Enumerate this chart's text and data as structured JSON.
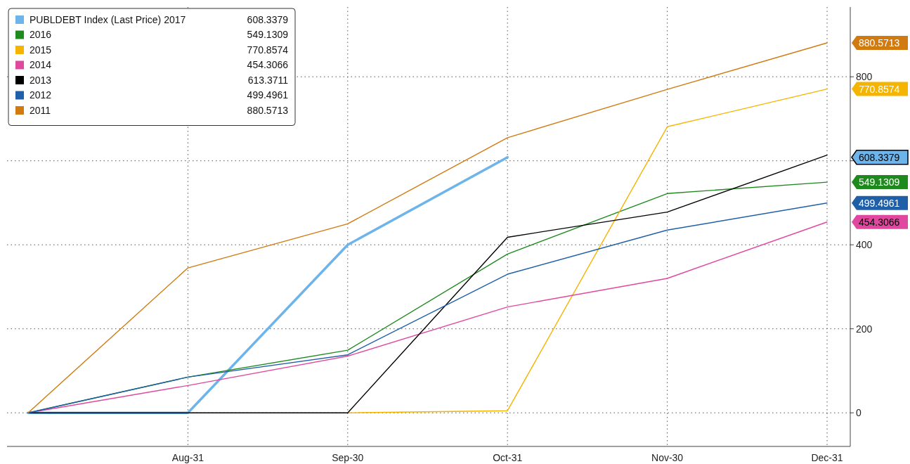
{
  "chart_data": {
    "type": "line",
    "categories": [
      null,
      "Aug-31",
      "Sep-30",
      "Oct-31",
      "Nov-30",
      "Dec-31"
    ],
    "ylim": [
      -80,
      966
    ],
    "yticks": [
      0,
      200,
      400,
      {
        "value": 600,
        "label": null
      },
      800
    ],
    "grid": true,
    "legend": "top left",
    "series": [
      {
        "name": "PUBLDEBT Index (Last Price) 2017",
        "color": "#6cb4ea",
        "values": [
          0,
          0,
          400,
          608.3379,
          null,
          null
        ]
      },
      {
        "name": "2016",
        "color": "#1e8a1e",
        "values": [
          0,
          85,
          149,
          378,
          522,
          549.1309
        ]
      },
      {
        "name": "2015",
        "color": "#f5b400",
        "values": [
          null,
          null,
          0,
          5,
          681,
          770.8574
        ]
      },
      {
        "name": "2014",
        "color": "#e0479e",
        "values": [
          0,
          65,
          135,
          252,
          320,
          454.3066
        ]
      },
      {
        "name": "2013",
        "color": "#000000",
        "values": [
          0,
          0,
          0,
          418,
          478,
          613.3711
        ]
      },
      {
        "name": "2012",
        "color": "#1f5fa8",
        "values": [
          0,
          85,
          138,
          330,
          435,
          499.4961
        ]
      },
      {
        "name": "2011",
        "color": "#d07a10",
        "values": [
          0,
          345,
          450,
          655,
          770,
          880.5713
        ]
      }
    ],
    "annotations": [
      "608.3379",
      "549.1309",
      "770.8574",
      "454.3066",
      "613.3711",
      "499.4961",
      "880.5713"
    ]
  }
}
